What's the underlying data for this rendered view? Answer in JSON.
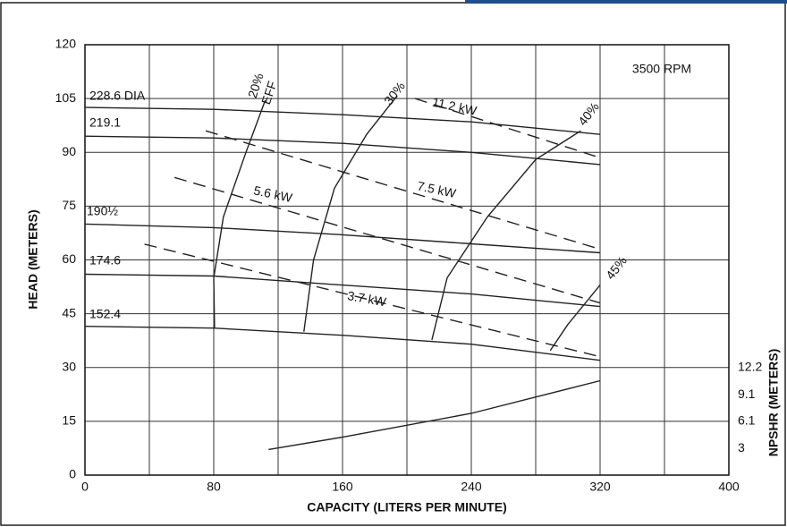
{
  "chart_data": {
    "type": "line",
    "xlabel": "CAPACITY (LITERS PER MINUTE)",
    "ylabel": "HEAD (METERS)",
    "y2label": "NPSHR (METERS)",
    "annotations": [
      "3500 RPM",
      "EFF"
    ],
    "xlim": [
      0,
      400
    ],
    "xticks": [
      0,
      80,
      160,
      240,
      320,
      400
    ],
    "xminorticks": [
      40,
      120,
      200,
      280,
      360
    ],
    "ylim": [
      0,
      120
    ],
    "yticks": [
      0,
      15,
      30,
      45,
      60,
      75,
      90,
      105,
      120
    ],
    "y2lim": [
      0,
      48.8
    ],
    "y2ticks": [
      3,
      6.1,
      9.1,
      12.2
    ],
    "grid": true,
    "series": [
      {
        "name": "228.6 DIA",
        "color": "#222",
        "x": [
          0,
          80,
          160,
          240,
          320
        ],
        "values": [
          102.5,
          102,
          100.5,
          98.5,
          95
        ]
      },
      {
        "name": "219.1",
        "color": "#222",
        "x": [
          0,
          80,
          160,
          240,
          320
        ],
        "values": [
          94.5,
          94,
          92.5,
          90,
          86.6
        ]
      },
      {
        "name": "190½",
        "color": "#222",
        "x": [
          0,
          80,
          160,
          240,
          320
        ],
        "values": [
          70,
          69,
          67,
          64.5,
          62
        ]
      },
      {
        "name": "174.6",
        "color": "#222",
        "x": [
          0,
          80,
          160,
          240,
          320
        ],
        "values": [
          56,
          55.5,
          53,
          50.5,
          47
        ]
      },
      {
        "name": "152.4",
        "color": "#222",
        "x": [
          0,
          80,
          160,
          240,
          320
        ],
        "values": [
          41.5,
          41,
          39,
          36.5,
          32
        ]
      },
      {
        "name": "11.2 kW",
        "color": "#222",
        "dashed": true,
        "x": [
          205,
          320
        ],
        "values": [
          105,
          88.5
        ]
      },
      {
        "name": "7.5 kW",
        "color": "#222",
        "dashed": true,
        "x": [
          75,
          320
        ],
        "values": [
          96,
          63
        ]
      },
      {
        "name": "5.6 kW",
        "color": "#222",
        "dashed": true,
        "x": [
          55.6,
          320
        ],
        "values": [
          83,
          48
        ]
      },
      {
        "name": "3.7 kW",
        "color": "#222",
        "dashed": true,
        "x": [
          37,
          320
        ],
        "values": [
          64.4,
          33
        ]
      },
      {
        "name": "20%",
        "color": "#222",
        "x": [
          80.5,
          80,
          86,
          100,
          112
        ],
        "values": [
          41,
          55,
          72,
          90,
          104.5
        ]
      },
      {
        "name": "30%",
        "color": "#222",
        "x": [
          136,
          142,
          155,
          175,
          194
        ],
        "values": [
          40,
          60,
          80,
          95,
          105.8
        ]
      },
      {
        "name": "40%",
        "color": "#222",
        "x": [
          215.5,
          225,
          250,
          280,
          308
        ],
        "values": [
          37.7,
          55,
          72,
          88,
          96
        ]
      },
      {
        "name": "45%",
        "color": "#222",
        "x": [
          289,
          300,
          320
        ],
        "values": [
          34.7,
          42,
          53
        ]
      },
      {
        "color": "#222",
        "axis": "y2",
        "x": [
          114,
          160,
          240,
          320
        ],
        "values": [
          2.9,
          4.3,
          7,
          10.7
        ]
      }
    ]
  }
}
